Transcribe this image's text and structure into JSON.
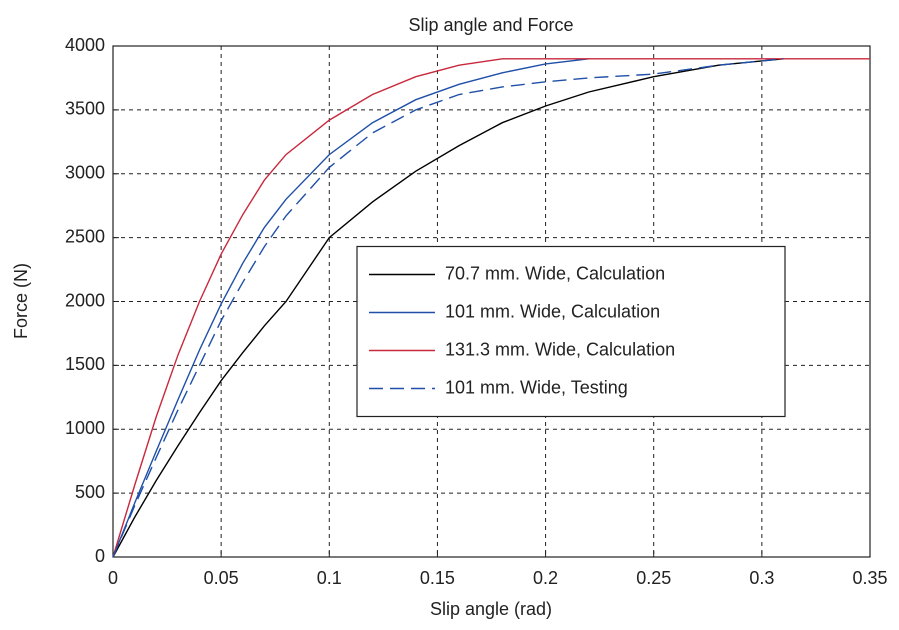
{
  "chart_data": {
    "type": "line",
    "title": "Slip angle and Force",
    "x_label": "Slip angle (rad)",
    "y_label": "Force (N)",
    "x": [
      0,
      0.01,
      0.02,
      0.03,
      0.04,
      0.05,
      0.06,
      0.07,
      0.08,
      0.1,
      0.12,
      0.14,
      0.16,
      0.18,
      0.2,
      0.22,
      0.25,
      0.28,
      0.31,
      0.35
    ],
    "series": [
      {
        "name": "70.7 mm. Wide, Calculation",
        "color": "#000000",
        "dash": false,
        "values": [
          0,
          310,
          600,
          870,
          1130,
          1380,
          1600,
          1810,
          2000,
          2500,
          2780,
          3020,
          3220,
          3400,
          3530,
          3640,
          3760,
          3850,
          3900,
          null
        ]
      },
      {
        "name": "101 mm. Wide, Calculation",
        "color": "#1f4fa8",
        "dash": false,
        "values": [
          0,
          420,
          830,
          1230,
          1620,
          1980,
          2300,
          2580,
          2800,
          3150,
          3400,
          3580,
          3700,
          3790,
          3860,
          3900,
          null,
          null,
          null,
          null
        ]
      },
      {
        "name": "131.3 mm. Wide, Calculation",
        "color": "#c8283c",
        "dash": false,
        "values": [
          0,
          560,
          1100,
          1580,
          2000,
          2370,
          2680,
          2950,
          3150,
          3420,
          3620,
          3760,
          3850,
          3900,
          3900,
          3900,
          3900,
          3900,
          3900,
          3900
        ]
      },
      {
        "name": "101 mm. Wide, Testing",
        "color": "#1f4fa8",
        "dash": true,
        "values": [
          0,
          400,
          780,
          1150,
          1500,
          1850,
          2150,
          2430,
          2670,
          3050,
          3320,
          3500,
          3620,
          3680,
          3720,
          3750,
          3780,
          3850,
          3900,
          null
        ]
      }
    ],
    "xlim": [
      0,
      0.35
    ],
    "xticks": [
      0,
      0.05,
      0.1,
      0.15,
      0.2,
      0.25,
      0.3,
      0.35
    ],
    "ylim": [
      0,
      4000
    ],
    "yticks": [
      0,
      500,
      1000,
      1500,
      2000,
      2500,
      3000,
      3500,
      4000
    ],
    "grid": true,
    "legend_position": "east"
  }
}
